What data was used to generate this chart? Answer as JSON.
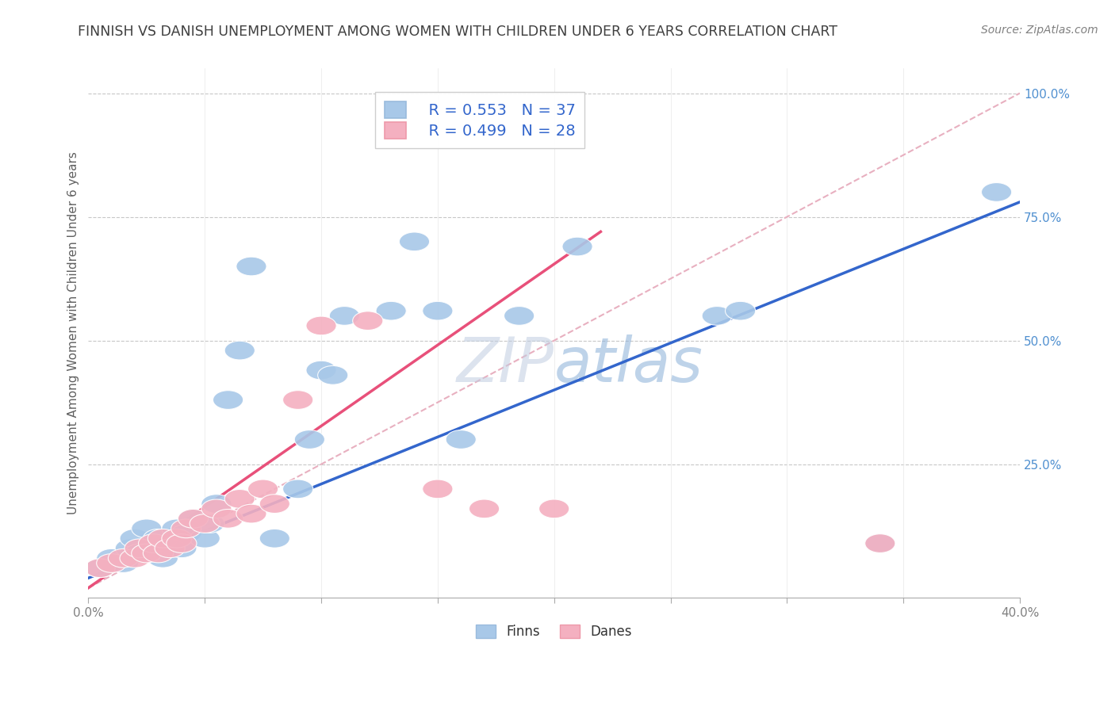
{
  "title": "FINNISH VS DANISH UNEMPLOYMENT AMONG WOMEN WITH CHILDREN UNDER 6 YEARS CORRELATION CHART",
  "source": "Source: ZipAtlas.com",
  "ylabel": "Unemployment Among Women with Children Under 6 years",
  "xlim": [
    0.0,
    0.4
  ],
  "ylim": [
    -0.02,
    1.05
  ],
  "ytick_positions": [
    0.0,
    0.25,
    0.5,
    0.75,
    1.0
  ],
  "ytick_labels": [
    "",
    "25.0%",
    "50.0%",
    "75.0%",
    "100.0%"
  ],
  "legend_r_finn": "R = 0.553",
  "legend_n_finn": "N = 37",
  "legend_r_dane": "R = 0.499",
  "legend_n_dane": "N = 28",
  "finn_color": "#a8c8e8",
  "dane_color": "#f4b0c0",
  "finn_line_color": "#3366cc",
  "dane_line_color": "#e8507a",
  "ref_line_color": "#e8b0c0",
  "watermark_color": "#c8d8f0",
  "background_color": "#ffffff",
  "grid_color": "#c8c8c8",
  "title_color": "#404040",
  "source_color": "#808080",
  "tick_label_color": "#808080",
  "right_tick_color": "#5090d0",
  "legend_text_color": "#3366cc",
  "finn_scatter_x": [
    0.005,
    0.01,
    0.015,
    0.018,
    0.02,
    0.022,
    0.025,
    0.028,
    0.03,
    0.032,
    0.035,
    0.038,
    0.04,
    0.042,
    0.045,
    0.05,
    0.052,
    0.055,
    0.06,
    0.065,
    0.07,
    0.08,
    0.09,
    0.095,
    0.1,
    0.105,
    0.11,
    0.13,
    0.14,
    0.15,
    0.16,
    0.185,
    0.21,
    0.27,
    0.28,
    0.34,
    0.39
  ],
  "finn_scatter_y": [
    0.04,
    0.06,
    0.05,
    0.08,
    0.1,
    0.07,
    0.12,
    0.08,
    0.1,
    0.06,
    0.09,
    0.12,
    0.08,
    0.11,
    0.14,
    0.1,
    0.13,
    0.17,
    0.38,
    0.48,
    0.65,
    0.1,
    0.2,
    0.3,
    0.44,
    0.43,
    0.55,
    0.56,
    0.7,
    0.56,
    0.3,
    0.55,
    0.69,
    0.55,
    0.56,
    0.09,
    0.8
  ],
  "dane_scatter_x": [
    0.005,
    0.01,
    0.015,
    0.02,
    0.022,
    0.025,
    0.028,
    0.03,
    0.032,
    0.035,
    0.038,
    0.04,
    0.042,
    0.045,
    0.05,
    0.055,
    0.06,
    0.065,
    0.07,
    0.075,
    0.08,
    0.09,
    0.1,
    0.12,
    0.15,
    0.17,
    0.2,
    0.34
  ],
  "dane_scatter_y": [
    0.04,
    0.05,
    0.06,
    0.06,
    0.08,
    0.07,
    0.09,
    0.07,
    0.1,
    0.08,
    0.1,
    0.09,
    0.12,
    0.14,
    0.13,
    0.16,
    0.14,
    0.18,
    0.15,
    0.2,
    0.17,
    0.38,
    0.53,
    0.54,
    0.2,
    0.16,
    0.16,
    0.09
  ],
  "finn_line_x": [
    0.0,
    0.4
  ],
  "finn_line_y": [
    0.02,
    0.78
  ],
  "dane_line_x": [
    0.0,
    0.22
  ],
  "dane_line_y": [
    0.0,
    0.72
  ],
  "ref_line_x": [
    0.0,
    0.4
  ],
  "ref_line_y": [
    0.0,
    1.0
  ]
}
